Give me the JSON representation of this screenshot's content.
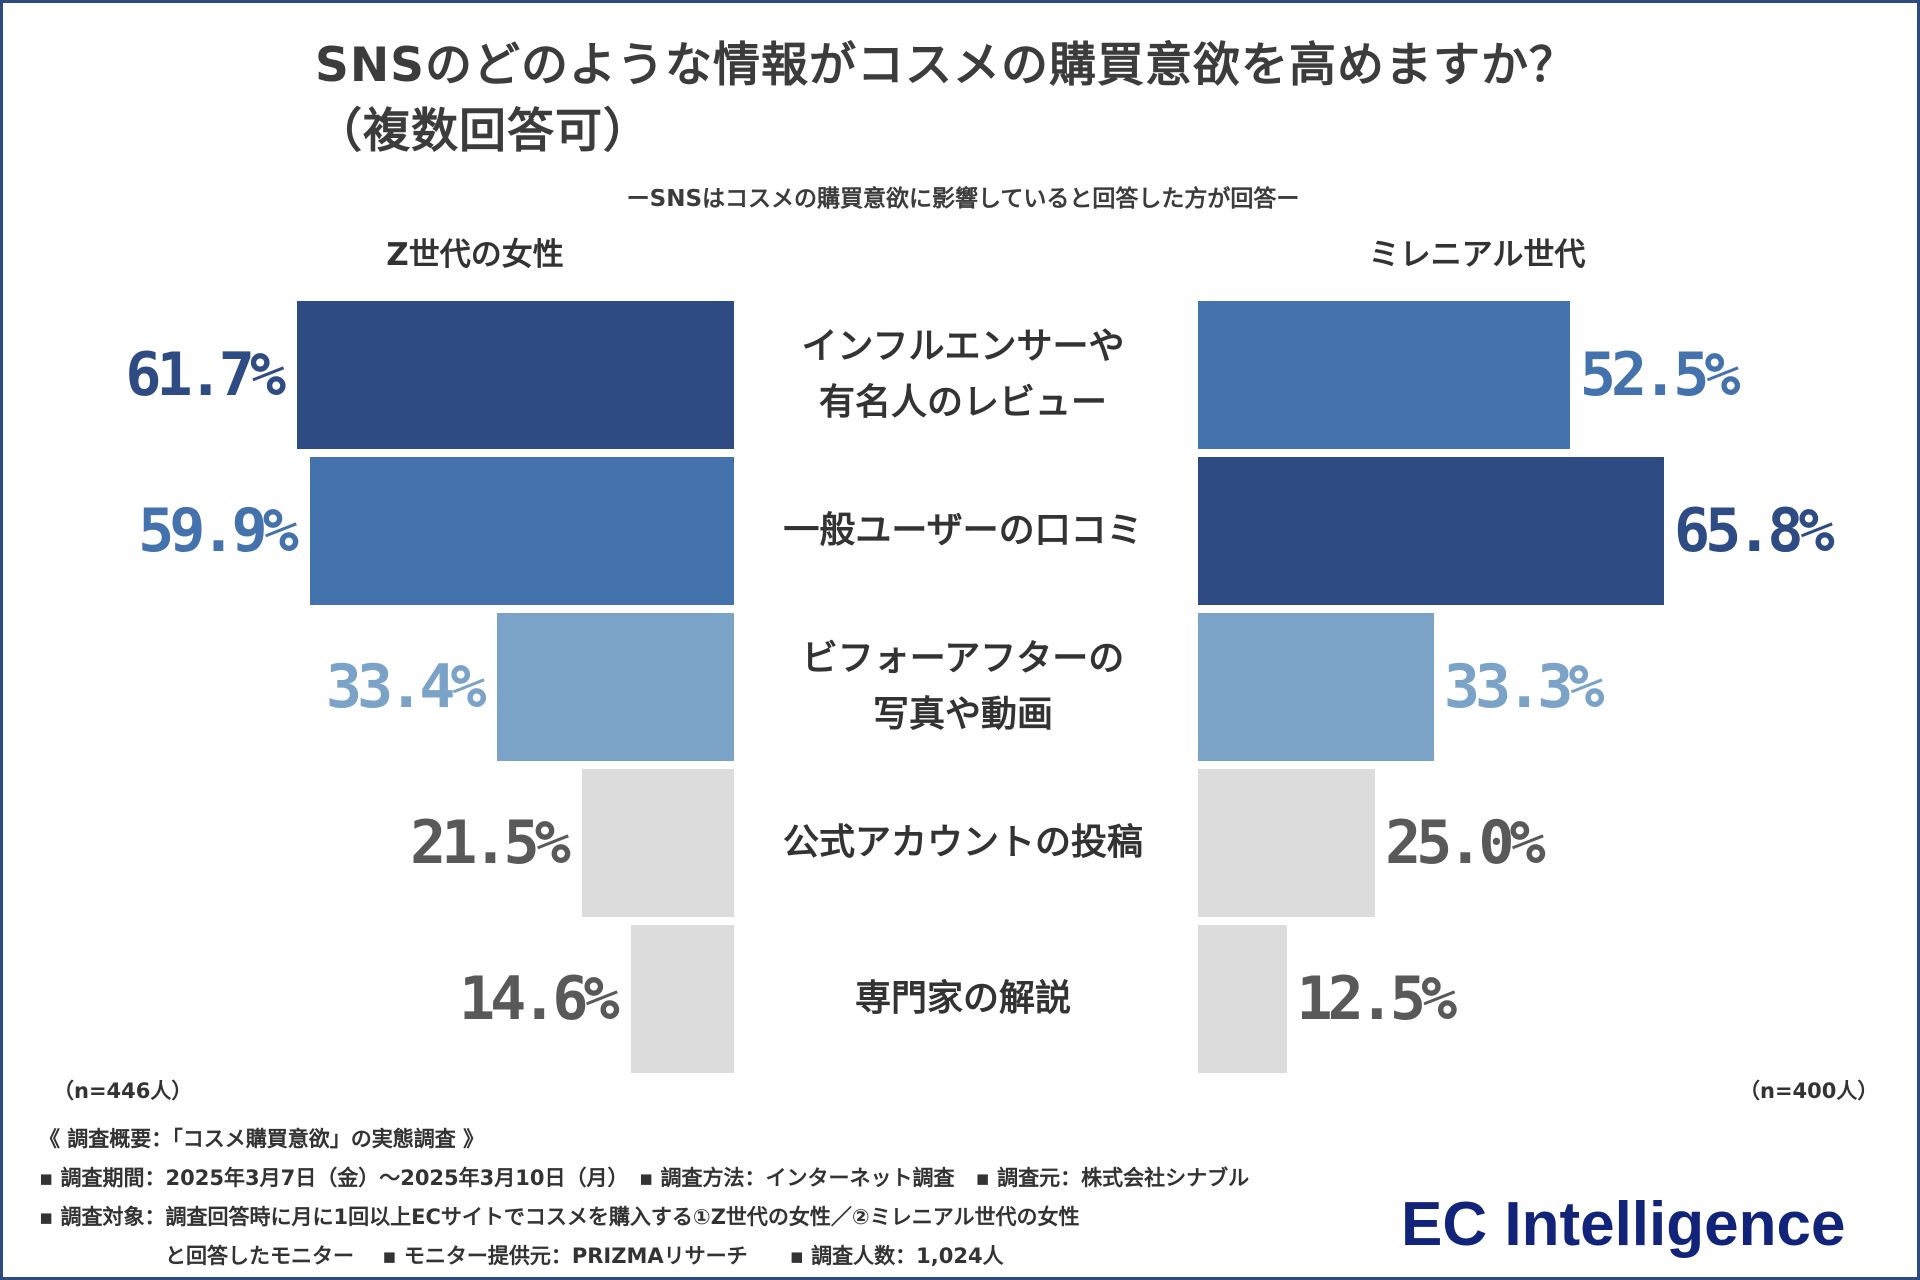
{
  "chart_data": {
    "type": "bar",
    "title_line1": "SNSのどのような情報がコスメの購買意欲を高めますか？",
    "title_line2": "（複数回答可）",
    "subtitle": "ーSNSはコスメの購買意欲に影響していると回答した方が回答ー",
    "categories": [
      [
        "インフルエンサーや",
        "有名人のレビュー"
      ],
      [
        "一般ユーザーの口コミ"
      ],
      [
        "ビフォーアフターの",
        "写真や動画"
      ],
      [
        "公式アカウントの投稿"
      ],
      [
        "専門家の解説"
      ]
    ],
    "series": [
      {
        "name": "Z世代の女性",
        "values": [
          61.7,
          59.9,
          33.4,
          21.5,
          14.6
        ],
        "labels": [
          "61.7%",
          "59.9%",
          "33.4%",
          "21.5%",
          "14.6%"
        ],
        "n_label": "（n=446人）"
      },
      {
        "name": "ミレニアル世代",
        "values": [
          52.5,
          65.8,
          33.3,
          25.0,
          12.5
        ],
        "labels": [
          "52.5%",
          "65.8%",
          "33.3%",
          "25.0%",
          "12.5%"
        ],
        "n_label": "（n=400人）"
      }
    ],
    "rank_colors": [
      "#2e4b83",
      "#4472ac",
      "#7aa3c7",
      "#dcdcdc",
      "#dcdcdc"
    ],
    "rank_text_colors": [
      "#2e4b83",
      "#4472ac",
      "#7aa3c7",
      "#595959",
      "#595959"
    ],
    "xlim": [
      0,
      70
    ]
  },
  "footer": {
    "overview": "《 調査概要：「コスメ購買意欲」の実態調査 》",
    "line1": "▪ 調査期間：2025年3月7日（金）～2025年3月10日（月）　▪ 調査方法：インターネット調査　▪ 調査元：株式会社シナブル",
    "line2": "▪ 調査対象：調査回答時に月に1回以上ECサイトでコスメを購入する①Z世代の女性／②ミレニアル世代の女性",
    "line3": "　　　　　　と回答したモニター　 ▪ モニター提供元：PRIZMAリサーチ　　▪ 調査人数：1,024人"
  },
  "brand": {
    "name_part1": "EC Intell",
    "name_i": "i",
    "name_part2": "gence"
  }
}
